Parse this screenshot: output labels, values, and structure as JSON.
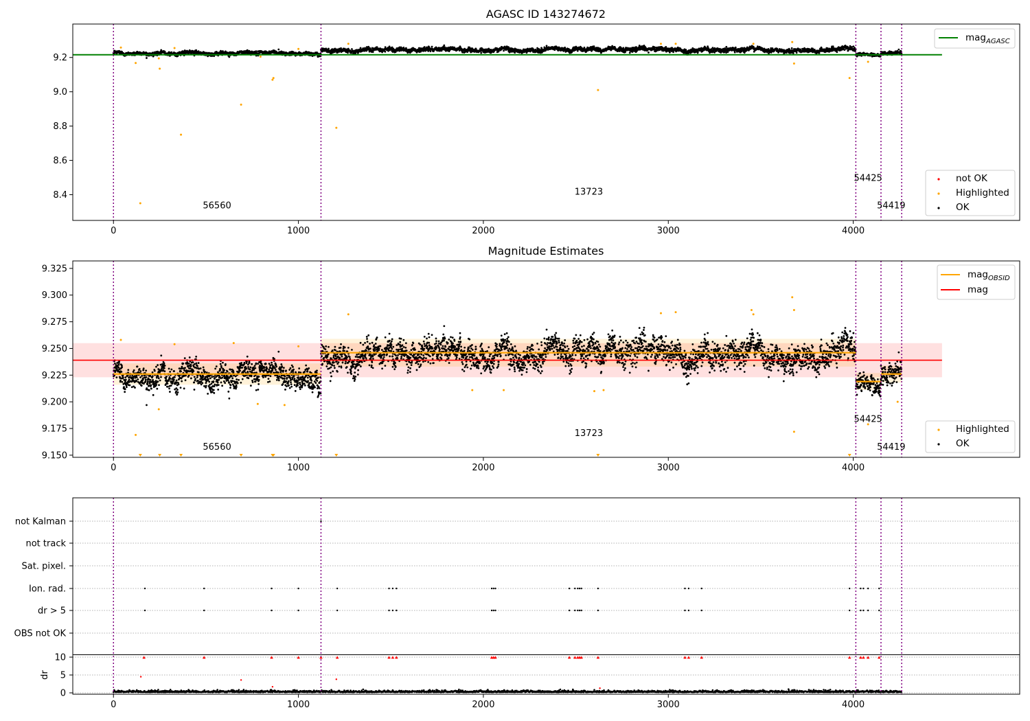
{
  "chart_data": [
    {
      "type": "scatter",
      "title": "AGASC ID 143274672",
      "xlim": [
        -220,
        4900
      ],
      "ylim": [
        8.25,
        9.395
      ],
      "xticks": [
        0,
        1000,
        2000,
        3000,
        4000
      ],
      "yticks": [
        8.4,
        8.6,
        8.8,
        9.0,
        9.2
      ],
      "ytick_labels": [
        "8.4",
        "8.6",
        "8.8",
        "9.0",
        "9.2"
      ],
      "obs_boundaries": [
        0,
        1122,
        4014,
        4150,
        4262
      ],
      "obsid_labels": [
        {
          "text": "56560",
          "x": 560,
          "y": 8.32
        },
        {
          "text": "13723",
          "x": 2570,
          "y": 8.4
        },
        {
          "text": "54425",
          "x": 4080,
          "y": 8.48
        },
        {
          "text": "54419",
          "x": 4205,
          "y": 8.32
        }
      ],
      "mag_agasc": 9.216,
      "mag_agasc_xrange": [
        -220,
        4480
      ],
      "segments_mean": [
        9.226,
        9.246,
        9.219,
        9.226
      ],
      "segments_noise": [
        0.01,
        0.011,
        0.009,
        0.009
      ],
      "highlighted_points": [
        [
          40,
          9.258
        ],
        [
          120,
          9.168
        ],
        [
          145,
          8.35
        ],
        [
          245,
          9.195
        ],
        [
          250,
          9.135
        ],
        [
          330,
          9.255
        ],
        [
          365,
          8.75
        ],
        [
          690,
          8.925
        ],
        [
          795,
          9.205
        ],
        [
          860,
          9.07
        ],
        [
          865,
          9.08
        ],
        [
          1000,
          9.25
        ],
        [
          1205,
          8.79
        ],
        [
          1270,
          9.28
        ],
        [
          2620,
          9.01
        ],
        [
          2960,
          9.28
        ],
        [
          3040,
          9.28
        ],
        [
          3460,
          9.28
        ],
        [
          3670,
          9.29
        ],
        [
          3680,
          9.165
        ],
        [
          3980,
          9.08
        ],
        [
          4080,
          9.175
        ]
      ],
      "legend_lines": [
        {
          "name": "mag_AGASC",
          "color": "#008000"
        }
      ],
      "legend_points": [
        {
          "name": "not OK",
          "color": "#ff0000"
        },
        {
          "name": "Highlighted",
          "color": "#ffa500"
        },
        {
          "name": "OK",
          "color": "#000000"
        }
      ]
    },
    {
      "type": "scatter",
      "title": "Magnitude Estimates",
      "xlim": [
        -220,
        4900
      ],
      "ylim": [
        9.148,
        9.332
      ],
      "xticks": [
        0,
        1000,
        2000,
        3000,
        4000
      ],
      "yticks": [
        9.15,
        9.175,
        9.2,
        9.225,
        9.25,
        9.275,
        9.3,
        9.325
      ],
      "ytick_labels": [
        "9.150",
        "9.175",
        "9.200",
        "9.225",
        "9.250",
        "9.275",
        "9.300",
        "9.325"
      ],
      "obs_boundaries": [
        0,
        1122,
        4014,
        4150,
        4262
      ],
      "obsid_labels": [
        {
          "text": "56560",
          "x": 560,
          "y": 9.155
        },
        {
          "text": "13723",
          "x": 2570,
          "y": 9.168
        },
        {
          "text": "54425",
          "x": 4080,
          "y": 9.181
        },
        {
          "text": "54419",
          "x": 4205,
          "y": 9.155
        }
      ],
      "mag_obsid": [
        {
          "x0": 0,
          "x1": 1122,
          "y": 9.226,
          "err": 0.01
        },
        {
          "x0": 1122,
          "x1": 4014,
          "y": 9.246,
          "err": 0.013
        },
        {
          "x0": 4014,
          "x1": 4150,
          "y": 9.219,
          "err": 0.008
        },
        {
          "x0": 4150,
          "x1": 4262,
          "y": 9.226,
          "err": 0.008
        }
      ],
      "mag": {
        "y": 9.239,
        "err": 0.016,
        "xrange": [
          -220,
          4480
        ]
      },
      "highlighted_points": [
        [
          40,
          9.258
        ],
        [
          120,
          9.169
        ],
        [
          245,
          9.193
        ],
        [
          330,
          9.254
        ],
        [
          650,
          9.255
        ],
        [
          780,
          9.198
        ],
        [
          925,
          9.197
        ],
        [
          1000,
          9.252
        ],
        [
          1270,
          9.282
        ],
        [
          1940,
          9.211
        ],
        [
          2110,
          9.211
        ],
        [
          2600,
          9.21
        ],
        [
          2650,
          9.211
        ],
        [
          2960,
          9.283
        ],
        [
          3040,
          9.284
        ],
        [
          3450,
          9.286
        ],
        [
          3460,
          9.282
        ],
        [
          3670,
          9.298
        ],
        [
          3680,
          9.286
        ],
        [
          3680,
          9.172
        ],
        [
          4080,
          9.179
        ],
        [
          4240,
          9.2
        ]
      ],
      "clipped_markers_x": [
        145,
        250,
        365,
        690,
        860,
        865,
        1205,
        2620,
        3980
      ],
      "legend_lines": [
        {
          "name": "mag_OBSID",
          "color": "#ffa500"
        },
        {
          "name": "mag",
          "color": "#ff0000"
        }
      ],
      "legend_points": [
        {
          "name": "Highlighted",
          "color": "#ffa500"
        },
        {
          "name": "OK",
          "color": "#000000"
        }
      ]
    },
    {
      "type": "scatter",
      "title": "",
      "xlim": [
        -220,
        4900
      ],
      "xticks": [
        0,
        1000,
        2000,
        3000,
        4000
      ],
      "flag_labels": [
        "not Kalman",
        "not track",
        "Sat. pixel.",
        "Ion. rad.",
        "dr > 5",
        "OBS not OK"
      ],
      "obs_boundaries": [
        0,
        1122,
        4014,
        4150,
        4262
      ],
      "not_kalman_x": [
        1122
      ],
      "ion_rad_x": [
        170,
        490,
        855,
        1000,
        1210,
        1490,
        1510,
        1530,
        2045,
        2055,
        2065,
        2465,
        2495,
        2510,
        2520,
        2530,
        2620,
        3090,
        3110,
        3180,
        3980,
        4040,
        4055,
        4080,
        4140
      ],
      "dr5_x": [
        170,
        490,
        855,
        1000,
        1210,
        1490,
        1510,
        1530,
        2045,
        2055,
        2065,
        2465,
        2495,
        2510,
        2520,
        2530,
        2620,
        3090,
        3110,
        3180,
        3980,
        4040,
        4055,
        4080,
        4140
      ],
      "dr_ylabel": "dr",
      "dr_yticks": [
        0,
        5,
        10
      ],
      "dr_ylim": [
        -0.4,
        10.4
      ],
      "dr_clipped_x": [
        165,
        490,
        855,
        1000,
        1122,
        1210,
        1490,
        1510,
        1530,
        2045,
        2055,
        2065,
        2465,
        2495,
        2510,
        2520,
        2530,
        2620,
        3090,
        3110,
        3180,
        3980,
        4040,
        4055,
        4080,
        4140
      ],
      "dr_outliers": [
        [
          148,
          4.5
        ],
        [
          690,
          3.6
        ],
        [
          1205,
          3.8
        ],
        [
          860,
          1.7
        ],
        [
          2630,
          1.3
        ]
      ]
    }
  ]
}
